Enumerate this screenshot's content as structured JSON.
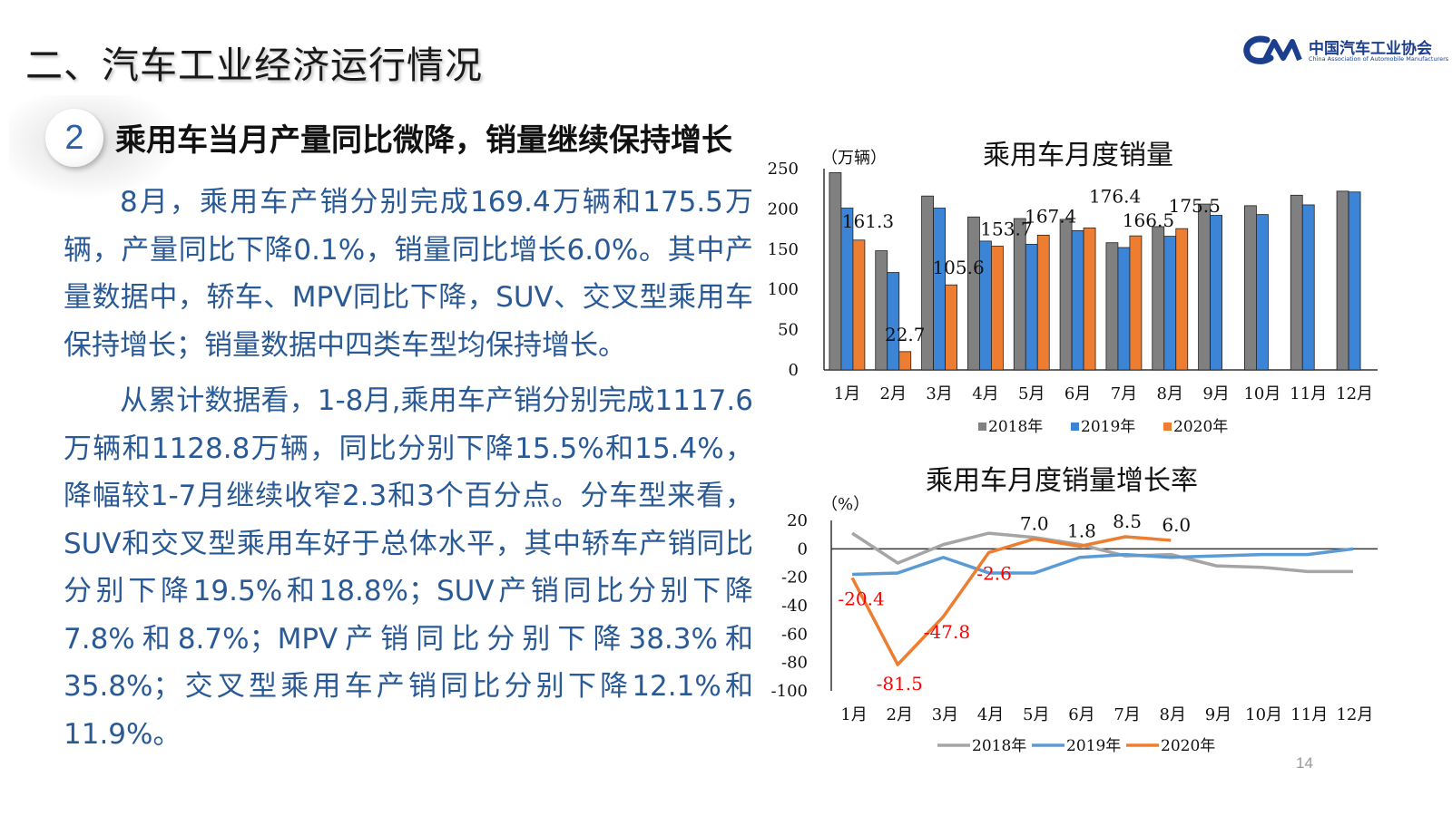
{
  "header": {
    "title": "二、汽车工业经济运行情况",
    "logo_cn": "中国汽车工业协会",
    "logo_en": "China Association of Automobile Manufacturers"
  },
  "section": {
    "number": "2",
    "subtitle": "乘用车当月产量同比微降，销量继续保持增长"
  },
  "body": {
    "paragraph1": "8月，乘用车产销分别完成169.4万辆和175.5万辆，产量同比下降0.1%，销量同比增长6.0%。其中产量数据中，轿车、MPV同比下降，SUV、交叉型乘用车保持增长；销量数据中四类车型均保持增长。",
    "paragraph2": "从累计数据看，1-8月,乘用车产销分别完成1117.6万辆和1128.8万辆，同比分别下降15.5%和15.4%，降幅较1-7月继续收窄2.3和3个百分点。分车型来看，SUV和交叉型乘用车好于总体水平，其中轿车产销同比分别下降19.5%和18.8%；SUV产销同比分别下降7.8%和8.7%；MPV产销同比分别下降38.3%和35.8%；交叉型乘用车产销同比分别下降12.1%和11.9%。"
  },
  "page_number": "14",
  "chart_data": [
    {
      "type": "bar",
      "title": "乘用车月度销量",
      "unit_label": "（万辆）",
      "categories": [
        "1月",
        "2月",
        "3月",
        "4月",
        "5月",
        "6月",
        "7月",
        "8月",
        "9月",
        "10月",
        "11月",
        "12月"
      ],
      "ylim": [
        0,
        250
      ],
      "yticks": [
        0,
        50,
        100,
        150,
        200,
        250
      ],
      "legend_position": "bottom",
      "series": [
        {
          "name": "2018年",
          "color": "#808080",
          "values": [
            245,
            148,
            216,
            190,
            188,
            187,
            158,
            178,
            206,
            204,
            217,
            222
          ]
        },
        {
          "name": "2019年",
          "color": "#3c84d6",
          "values": [
            201,
            121,
            201,
            160,
            156,
            173,
            152,
            166,
            192,
            193,
            205,
            221
          ]
        },
        {
          "name": "2020年",
          "color": "#ed7d31",
          "values": [
            161.3,
            22.7,
            105.6,
            153.7,
            167.4,
            176.4,
            166.5,
            175.5,
            null,
            null,
            null,
            null
          ]
        }
      ],
      "data_labels": [
        "161.3",
        "22.7",
        "105.6",
        "153.7",
        "167.4",
        "176.4",
        "166.5",
        "175.5"
      ]
    },
    {
      "type": "line",
      "title": "乘用车月度销量增长率",
      "unit_label": "（%）",
      "categories": [
        "1月",
        "2月",
        "3月",
        "4月",
        "5月",
        "6月",
        "7月",
        "8月",
        "9月",
        "10月",
        "11月",
        "12月"
      ],
      "ylim": [
        -100,
        20
      ],
      "yticks": [
        20,
        0,
        -20,
        -40,
        -60,
        -80,
        -100
      ],
      "legend_position": "bottom",
      "series": [
        {
          "name": "2018年",
          "color": "#a5a5a5",
          "values": [
            11,
            -10,
            3,
            11,
            8,
            3,
            -5,
            -4,
            -12,
            -13,
            -16,
            -16
          ]
        },
        {
          "name": "2019年",
          "color": "#5b9bd5",
          "values": [
            -18,
            -17,
            -6,
            -17,
            -17,
            -6,
            -4,
            -6,
            -5,
            -4,
            -4,
            0
          ]
        },
        {
          "name": "2020年",
          "color": "#ed7d31",
          "values": [
            -20.4,
            -81.5,
            -47.8,
            -2.6,
            7.0,
            1.8,
            8.5,
            6.0,
            null,
            null,
            null,
            null
          ]
        }
      ],
      "data_labels": [
        {
          "text": "-20.4",
          "color": "red"
        },
        {
          "text": "-81.5",
          "color": "red"
        },
        {
          "text": "-47.8",
          "color": "red"
        },
        {
          "text": "-2.6",
          "color": "red"
        },
        {
          "text": "7.0",
          "color": "black"
        },
        {
          "text": "1.8",
          "color": "black"
        },
        {
          "text": "8.5",
          "color": "black"
        },
        {
          "text": "6.0",
          "color": "black"
        }
      ]
    }
  ]
}
